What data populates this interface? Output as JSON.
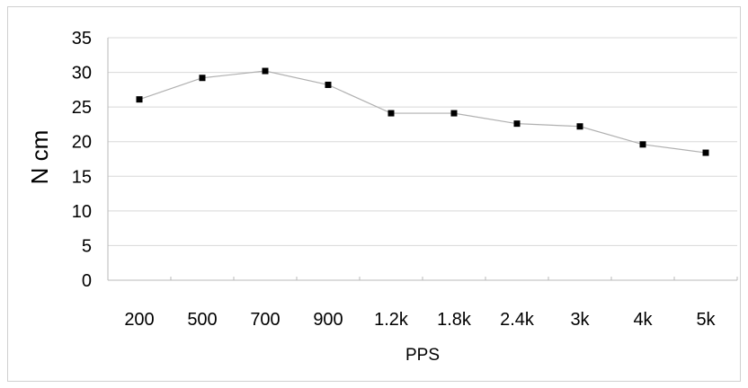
{
  "chart_data": {
    "type": "line",
    "title": "",
    "xlabel": "PPS",
    "ylabel": "N cm",
    "categories": [
      "200",
      "500",
      "700",
      "900",
      "1.2k",
      "1.8k",
      "2.4k",
      "3k",
      "4k",
      "5k"
    ],
    "series": [
      {
        "values": [
          26.1,
          29.2,
          30.2,
          28.2,
          24.1,
          24.1,
          22.6,
          22.2,
          19.6,
          18.4
        ],
        "marker": "square",
        "marker_color": "#000000",
        "line_color": "#b0b0b0"
      }
    ],
    "ylim": [
      0,
      35
    ],
    "yticks": [
      "0",
      "5",
      "10",
      "15",
      "20",
      "25",
      "30",
      "35"
    ],
    "grid": "horizontal",
    "legend": "none"
  }
}
